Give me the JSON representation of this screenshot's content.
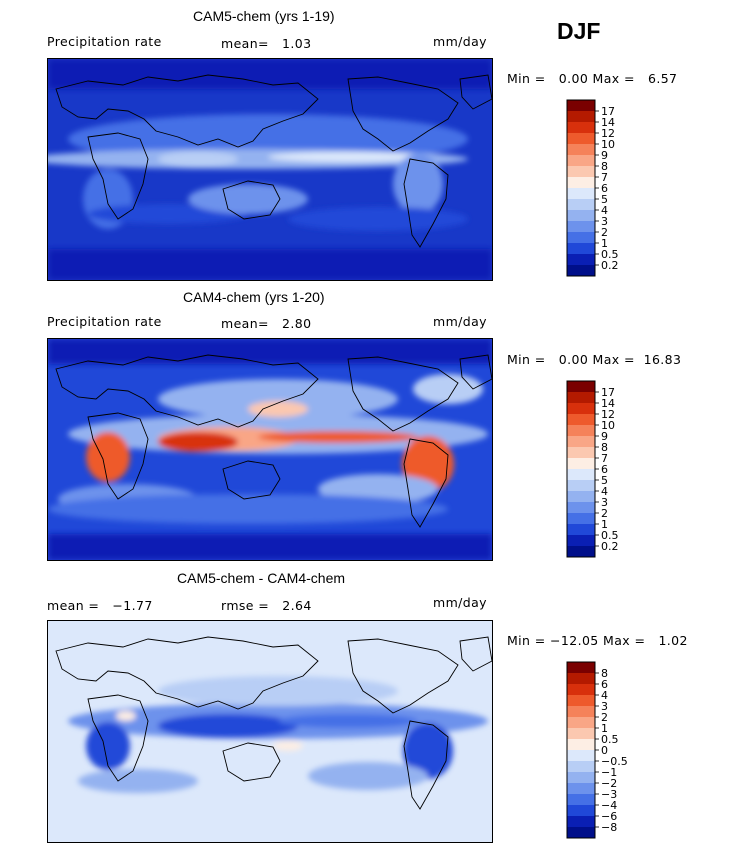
{
  "figure": {
    "season": "DJF"
  },
  "panels": [
    {
      "title": "CAM5-chem (yrs 1-19)",
      "left_label": "Precipitation rate",
      "stat1": "mean=   1.03",
      "units": "mm/day",
      "range_label": "Min =   0.00 Max =   6.57",
      "colorbar": {
        "labels": [
          "17",
          "14",
          "12",
          "10",
          "9",
          "8",
          "7",
          "6",
          "5",
          "4",
          "3",
          "2",
          "1",
          "0.5",
          "0.2"
        ],
        "colors": [
          "#7a0000",
          "#b41a00",
          "#d8300c",
          "#ee5a2c",
          "#f5825a",
          "#f9a686",
          "#fbc8b0",
          "#fdeee4",
          "#dce8fb",
          "#b8cef5",
          "#94b2f0",
          "#6d92ec",
          "#4570e6",
          "#2048d8",
          "#0a1fb4",
          "#000f8a"
        ]
      },
      "chart_data": {
        "type": "heatmap",
        "variable": "Precipitation rate",
        "units": "mm/day",
        "mean": 1.03,
        "min": 0.0,
        "max": 6.57,
        "contour_levels": [
          0.2,
          0.5,
          1,
          2,
          3,
          4,
          5,
          6,
          7,
          8,
          9,
          10,
          12,
          14,
          17
        ]
      }
    },
    {
      "title": "CAM4-chem (yrs 1-20)",
      "left_label": "Precipitation rate",
      "stat1": "mean=   2.80",
      "units": "mm/day",
      "range_label": "Min =   0.00 Max =  16.83",
      "colorbar": {
        "labels": [
          "17",
          "14",
          "12",
          "10",
          "9",
          "8",
          "7",
          "6",
          "5",
          "4",
          "3",
          "2",
          "1",
          "0.5",
          "0.2"
        ],
        "colors": [
          "#7a0000",
          "#b41a00",
          "#d8300c",
          "#ee5a2c",
          "#f5825a",
          "#f9a686",
          "#fbc8b0",
          "#fdeee4",
          "#dce8fb",
          "#b8cef5",
          "#94b2f0",
          "#6d92ec",
          "#4570e6",
          "#2048d8",
          "#0a1fb4",
          "#000f8a"
        ]
      },
      "chart_data": {
        "type": "heatmap",
        "variable": "Precipitation rate",
        "units": "mm/day",
        "mean": 2.8,
        "min": 0.0,
        "max": 16.83,
        "contour_levels": [
          0.2,
          0.5,
          1,
          2,
          3,
          4,
          5,
          6,
          7,
          8,
          9,
          10,
          12,
          14,
          17
        ]
      }
    },
    {
      "title": "CAM5-chem - CAM4-chem",
      "left_label": "mean =   −1.77",
      "stat1": "rmse =   2.64",
      "units": "mm/day",
      "range_label": "Min = −12.05 Max =   1.02",
      "colorbar": {
        "labels": [
          "8",
          "6",
          "4",
          "3",
          "2",
          "1",
          "0.5",
          "0",
          "−0.5",
          "−1",
          "−2",
          "−3",
          "−4",
          "−6",
          "−8"
        ],
        "colors": [
          "#7a0000",
          "#b41a00",
          "#d8300c",
          "#ee5a2c",
          "#f5825a",
          "#f9a686",
          "#fbc8b0",
          "#fdeee4",
          "#dce8fb",
          "#b8cef5",
          "#94b2f0",
          "#6d92ec",
          "#4570e6",
          "#2048d8",
          "#0a1fb4",
          "#000f8a"
        ]
      },
      "chart_data": {
        "type": "heatmap",
        "variable": "CAM5-chem - CAM4-chem",
        "units": "mm/day",
        "mean": -1.77,
        "rmse": 2.64,
        "min": -12.05,
        "max": 1.02,
        "contour_levels": [
          -8,
          -6,
          -4,
          -3,
          -2,
          -1,
          -0.5,
          0,
          0.5,
          1,
          2,
          3,
          4,
          6,
          8
        ]
      }
    }
  ]
}
